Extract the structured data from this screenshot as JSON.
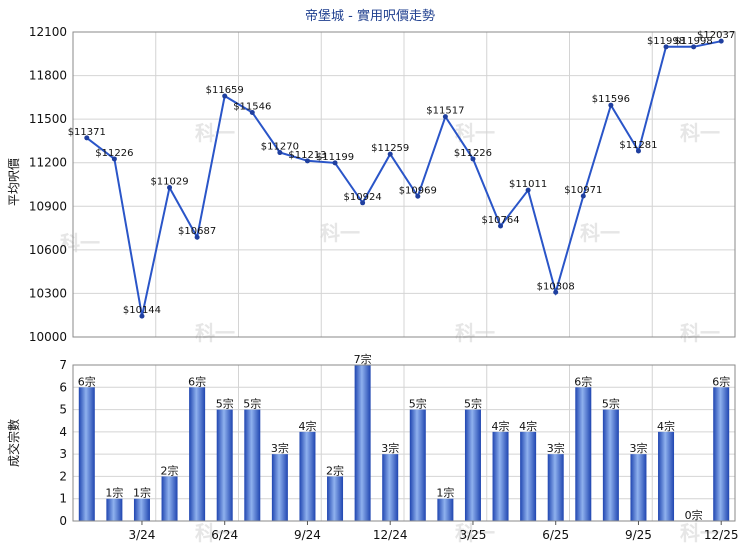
{
  "chart_data": [
    {
      "type": "line",
      "title": "帝堡城 - 實用呎價走勢",
      "ylabel": "平均呎價",
      "ylim": [
        10000,
        12100
      ],
      "yticks": [
        10000,
        10300,
        10600,
        10900,
        11200,
        11500,
        11800,
        12100
      ],
      "x": [
        "1/24",
        "2/24",
        "3/24",
        "4/24",
        "5/24",
        "6/24",
        "7/24",
        "8/24",
        "9/24",
        "10/24",
        "11/24",
        "12/24",
        "1/25",
        "2/25",
        "3/25",
        "4/25",
        "5/25",
        "6/25",
        "7/25",
        "8/25",
        "9/25",
        "10/25",
        "11/25",
        "12/25"
      ],
      "values": [
        11371,
        11226,
        10144,
        11029,
        10687,
        11659,
        11546,
        11270,
        11213,
        11199,
        10924,
        11259,
        10969,
        11517,
        11226,
        10764,
        11011,
        10308,
        10971,
        11596,
        11281,
        11998,
        11998,
        12037
      ],
      "labels": [
        "$11371",
        "$11226",
        "$10144",
        "$11029",
        "$10687",
        "$11659",
        "$11546",
        "$11270",
        "$11213",
        "$11199",
        "$10924",
        "$11259",
        "$10969",
        "$11517",
        "$11226",
        "$10764",
        "$11011",
        "$10308",
        "$10971",
        "$11596",
        "$11281",
        "$11998",
        "$11998",
        "$12037"
      ],
      "grid": true
    },
    {
      "type": "bar",
      "ylabel": "成交宗數",
      "ylim": [
        0,
        7
      ],
      "yticks": [
        0,
        1,
        2,
        3,
        4,
        5,
        6,
        7
      ],
      "categories": [
        "1/24",
        "2/24",
        "3/24",
        "4/24",
        "5/24",
        "6/24",
        "7/24",
        "8/24",
        "9/24",
        "10/24",
        "11/24",
        "12/24",
        "1/25",
        "2/25",
        "3/25",
        "4/25",
        "5/25",
        "6/25",
        "7/25",
        "8/25",
        "9/25",
        "10/25",
        "11/25",
        "12/25"
      ],
      "values": [
        6,
        1,
        1,
        2,
        6,
        5,
        5,
        3,
        4,
        2,
        7,
        3,
        5,
        1,
        5,
        4,
        4,
        3,
        6,
        5,
        3,
        4,
        0,
        6
      ],
      "labels": [
        "6宗",
        "1宗",
        "1宗",
        "2宗",
        "6宗",
        "5宗",
        "5宗",
        "3宗",
        "4宗",
        "2宗",
        "7宗",
        "3宗",
        "5宗",
        "1宗",
        "5宗",
        "4宗",
        "4宗",
        "3宗",
        "6宗",
        "5宗",
        "3宗",
        "4宗",
        "0宗",
        "6宗"
      ],
      "xtick_labels": [
        "3/24",
        "6/24",
        "9/24",
        "12/24",
        "3/25",
        "6/25",
        "9/25",
        "12/25"
      ],
      "grid": true
    }
  ],
  "colors": {
    "line": "#2a55c8",
    "bar_dark": "#1f45b0",
    "bar_light": "#8fb1ee"
  }
}
